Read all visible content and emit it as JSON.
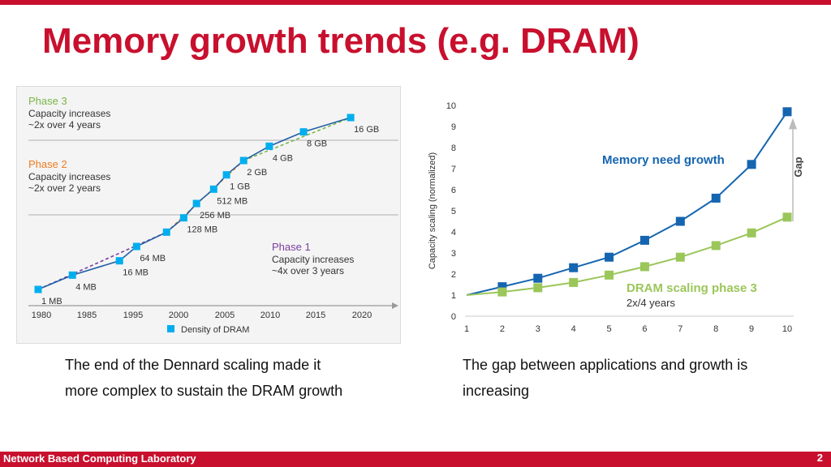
{
  "slide": {
    "title": "Memory growth trends (e.g. DRAM)",
    "caption_left_line1": "The end of the Dennard scaling made it",
    "caption_left_line2": "more complex to sustain the DRAM growth",
    "caption_right_line1": "The gap between applications and growth is",
    "caption_right_line2": "increasing",
    "footer": "Network Based Computing Laboratory",
    "page_number": "2"
  },
  "colors": {
    "brand_red": "#c8102e",
    "dram_marker": "#00aeef",
    "trend_line": "#1f5fa6",
    "phase3_green": "#7ab648",
    "phase2_orange": "#f07d22",
    "phase1_purple": "#7a3e9d",
    "need_blue": "#1565b0",
    "dram_green": "#9bc65a"
  },
  "chart_data": [
    {
      "type": "scatter",
      "xlim": [
        1980,
        2020
      ],
      "x_ticks": [
        "1980",
        "1985",
        "1995",
        "2000",
        "2005",
        "2010",
        "2015",
        "2020"
      ],
      "points": [
        {
          "x": 1980,
          "label": "1 MB"
        },
        {
          "x": 1984,
          "label": "4 MB"
        },
        {
          "x": 1989.5,
          "label": "16 MB"
        },
        {
          "x": 1991.5,
          "label": "64 MB"
        },
        {
          "x": 1995,
          "label": ""
        },
        {
          "x": 1997,
          "label": "128 MB"
        },
        {
          "x": 1998.5,
          "label": "256 MB"
        },
        {
          "x": 2000.5,
          "label": "512 MB"
        },
        {
          "x": 2002,
          "label": "1 GB"
        },
        {
          "x": 2004,
          "label": "2 GB"
        },
        {
          "x": 2007,
          "label": "4 GB"
        },
        {
          "x": 2011,
          "label": "8 GB"
        },
        {
          "x": 2016.5,
          "label": "16 GB"
        }
      ],
      "legend": "Density of DRAM",
      "phases": [
        {
          "name": "Phase 3",
          "line1": "Capacity increases",
          "line2": "~2x over 4 years"
        },
        {
          "name": "Phase 2",
          "line1": "Capacity increases",
          "line2": "~2x over 2 years"
        },
        {
          "name": "Phase 1",
          "line1": "Capacity increases",
          "line2": "~4x over 3 years"
        }
      ]
    },
    {
      "type": "line",
      "x": [
        1,
        2,
        3,
        4,
        5,
        6,
        7,
        8,
        9,
        10
      ],
      "ylim": [
        0,
        10
      ],
      "y_ticks": [
        0,
        1,
        2,
        3,
        4,
        5,
        6,
        7,
        8,
        9,
        10
      ],
      "ylabel": "Capacity scaling (normalized)",
      "series": [
        {
          "name": "Memory need growth",
          "values": [
            1,
            1.4,
            1.8,
            2.3,
            2.8,
            3.6,
            4.5,
            5.6,
            7.2,
            9.7
          ]
        },
        {
          "name": "DRAM scaling phase 3",
          "values": [
            1,
            1.15,
            1.35,
            1.6,
            1.95,
            2.35,
            2.8,
            3.35,
            3.95,
            4.7
          ]
        }
      ],
      "sublabel": "2x/4 years",
      "gap_label": "Gap"
    }
  ]
}
